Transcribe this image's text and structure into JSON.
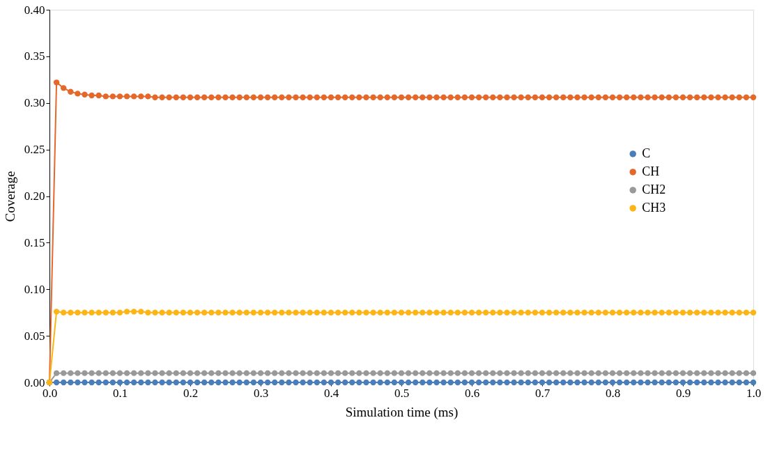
{
  "chart_data": {
    "type": "line",
    "xlabel": "Simulation time (ms)",
    "ylabel": "Coverage",
    "x": [
      0,
      0.01,
      0.02,
      0.03,
      0.04,
      0.05,
      0.06,
      0.07,
      0.08,
      0.09,
      0.1,
      0.11,
      0.12,
      0.13,
      0.14,
      0.15,
      0.16,
      0.17,
      0.18,
      0.19,
      0.2,
      0.21,
      0.22,
      0.23,
      0.24,
      0.25,
      0.26,
      0.27,
      0.28,
      0.29,
      0.3,
      0.31,
      0.32,
      0.33,
      0.34,
      0.35,
      0.36,
      0.37,
      0.38,
      0.39,
      0.4,
      0.41,
      0.42,
      0.43,
      0.44,
      0.45,
      0.46,
      0.47,
      0.48,
      0.49,
      0.5,
      0.51,
      0.52,
      0.53,
      0.54,
      0.55,
      0.56,
      0.57,
      0.58,
      0.59,
      0.6,
      0.61,
      0.62,
      0.63,
      0.64,
      0.65,
      0.66,
      0.67,
      0.68,
      0.69,
      0.7,
      0.71,
      0.72,
      0.73,
      0.74,
      0.75,
      0.76,
      0.77,
      0.78,
      0.79,
      0.8,
      0.81,
      0.82,
      0.83,
      0.84,
      0.85,
      0.86,
      0.87,
      0.88,
      0.89,
      0.9,
      0.91,
      0.92,
      0.93,
      0.94,
      0.95,
      0.96,
      0.97,
      0.98,
      0.99,
      1.0
    ],
    "series": [
      {
        "name": "C",
        "color": "#4a7ebb",
        "values": [
          0,
          0,
          0,
          0,
          0,
          0,
          0,
          0,
          0,
          0,
          0,
          0,
          0,
          0,
          0,
          0,
          0,
          0,
          0,
          0,
          0,
          0,
          0,
          0,
          0,
          0,
          0,
          0,
          0,
          0,
          0,
          0,
          0,
          0,
          0,
          0,
          0,
          0,
          0,
          0,
          0,
          0,
          0,
          0,
          0,
          0,
          0,
          0,
          0,
          0,
          0,
          0,
          0,
          0,
          0,
          0,
          0,
          0,
          0,
          0,
          0,
          0,
          0,
          0,
          0,
          0,
          0,
          0,
          0,
          0,
          0,
          0,
          0,
          0,
          0,
          0,
          0,
          0,
          0,
          0,
          0,
          0,
          0,
          0,
          0,
          0,
          0,
          0,
          0,
          0,
          0,
          0,
          0,
          0,
          0,
          0,
          0,
          0,
          0,
          0,
          0
        ]
      },
      {
        "name": "CH",
        "color": "#e4682a",
        "values": [
          0,
          0.322,
          0.316,
          0.312,
          0.31,
          0.309,
          0.308,
          0.308,
          0.307,
          0.307,
          0.307,
          0.307,
          0.307,
          0.307,
          0.307,
          0.306,
          0.306,
          0.306,
          0.306,
          0.306,
          0.306,
          0.306,
          0.306,
          0.306,
          0.306,
          0.306,
          0.306,
          0.306,
          0.306,
          0.306,
          0.306,
          0.306,
          0.306,
          0.306,
          0.306,
          0.306,
          0.306,
          0.306,
          0.306,
          0.306,
          0.306,
          0.306,
          0.306,
          0.306,
          0.306,
          0.306,
          0.306,
          0.306,
          0.306,
          0.306,
          0.306,
          0.306,
          0.306,
          0.306,
          0.306,
          0.306,
          0.306,
          0.306,
          0.306,
          0.306,
          0.306,
          0.306,
          0.306,
          0.306,
          0.306,
          0.306,
          0.306,
          0.306,
          0.306,
          0.306,
          0.306,
          0.306,
          0.306,
          0.306,
          0.306,
          0.306,
          0.306,
          0.306,
          0.306,
          0.306,
          0.306,
          0.306,
          0.306,
          0.306,
          0.306,
          0.306,
          0.306,
          0.306,
          0.306,
          0.306,
          0.306,
          0.306,
          0.306,
          0.306,
          0.306,
          0.306,
          0.306,
          0.306,
          0.306,
          0.306,
          0.306
        ]
      },
      {
        "name": "CH2",
        "color": "#999999",
        "values": [
          0,
          0.01,
          0.01,
          0.01,
          0.01,
          0.01,
          0.01,
          0.01,
          0.01,
          0.01,
          0.01,
          0.01,
          0.01,
          0.01,
          0.01,
          0.01,
          0.01,
          0.01,
          0.01,
          0.01,
          0.01,
          0.01,
          0.01,
          0.01,
          0.01,
          0.01,
          0.01,
          0.01,
          0.01,
          0.01,
          0.01,
          0.01,
          0.01,
          0.01,
          0.01,
          0.01,
          0.01,
          0.01,
          0.01,
          0.01,
          0.01,
          0.01,
          0.01,
          0.01,
          0.01,
          0.01,
          0.01,
          0.01,
          0.01,
          0.01,
          0.01,
          0.01,
          0.01,
          0.01,
          0.01,
          0.01,
          0.01,
          0.01,
          0.01,
          0.01,
          0.01,
          0.01,
          0.01,
          0.01,
          0.01,
          0.01,
          0.01,
          0.01,
          0.01,
          0.01,
          0.01,
          0.01,
          0.01,
          0.01,
          0.01,
          0.01,
          0.01,
          0.01,
          0.01,
          0.01,
          0.01,
          0.01,
          0.01,
          0.01,
          0.01,
          0.01,
          0.01,
          0.01,
          0.01,
          0.01,
          0.01,
          0.01,
          0.01,
          0.01,
          0.01,
          0.01,
          0.01,
          0.01,
          0.01,
          0.01,
          0.01
        ]
      },
      {
        "name": "CH3",
        "color": "#fdb515",
        "values": [
          0,
          0.076,
          0.075,
          0.075,
          0.075,
          0.075,
          0.075,
          0.075,
          0.075,
          0.075,
          0.075,
          0.076,
          0.076,
          0.076,
          0.075,
          0.075,
          0.075,
          0.075,
          0.075,
          0.075,
          0.075,
          0.075,
          0.075,
          0.075,
          0.075,
          0.075,
          0.075,
          0.075,
          0.075,
          0.075,
          0.075,
          0.075,
          0.075,
          0.075,
          0.075,
          0.075,
          0.075,
          0.075,
          0.075,
          0.075,
          0.075,
          0.075,
          0.075,
          0.075,
          0.075,
          0.075,
          0.075,
          0.075,
          0.075,
          0.075,
          0.075,
          0.075,
          0.075,
          0.075,
          0.075,
          0.075,
          0.075,
          0.075,
          0.075,
          0.075,
          0.075,
          0.075,
          0.075,
          0.075,
          0.075,
          0.075,
          0.075,
          0.075,
          0.075,
          0.075,
          0.075,
          0.075,
          0.075,
          0.075,
          0.075,
          0.075,
          0.075,
          0.075,
          0.075,
          0.075,
          0.075,
          0.075,
          0.075,
          0.075,
          0.075,
          0.075,
          0.075,
          0.075,
          0.075,
          0.075,
          0.075,
          0.075,
          0.075,
          0.075,
          0.075,
          0.075,
          0.075,
          0.075,
          0.075,
          0.075,
          0.075
        ]
      }
    ],
    "xlim": [
      0,
      1.0
    ],
    "xticks": [
      {
        "value": 0,
        "label": "0.0"
      },
      {
        "value": 0.1,
        "label": "0.1"
      },
      {
        "value": 0.2,
        "label": "0.2"
      },
      {
        "value": 0.3,
        "label": "0.3"
      },
      {
        "value": 0.4,
        "label": "0.4"
      },
      {
        "value": 0.5,
        "label": "0.5"
      },
      {
        "value": 0.6,
        "label": "0.6"
      },
      {
        "value": 0.7,
        "label": "0.7"
      },
      {
        "value": 0.8,
        "label": "0.8"
      },
      {
        "value": 0.9,
        "label": "0.9"
      },
      {
        "value": 1.0,
        "label": "1.0"
      }
    ],
    "ylim": [
      0,
      0.4
    ],
    "yticks": [
      {
        "value": 0,
        "label": "0.00"
      },
      {
        "value": 0.05,
        "label": "0.05"
      },
      {
        "value": 0.1,
        "label": "0.10"
      },
      {
        "value": 0.15,
        "label": "0.15"
      },
      {
        "value": 0.2,
        "label": "0.20"
      },
      {
        "value": 0.25,
        "label": "0.25"
      },
      {
        "value": 0.3,
        "label": "0.30"
      },
      {
        "value": 0.35,
        "label": "0.35"
      },
      {
        "value": 0.4,
        "label": "0.40"
      }
    ],
    "grid": false,
    "legend": "right",
    "marker": "circle",
    "line_style": "solid"
  }
}
